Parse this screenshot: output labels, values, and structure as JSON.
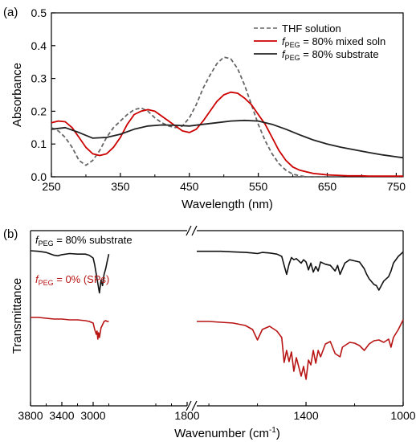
{
  "chart_data": [
    {
      "panel_label": "(a)",
      "type": "line",
      "xlabel": "Wavelength (nm)",
      "ylabel": "Absorbance",
      "xlim": [
        250,
        760
      ],
      "ylim": [
        0.0,
        0.5
      ],
      "x_ticks": [
        250,
        350,
        450,
        550,
        650,
        750
      ],
      "y_ticks": [
        0.0,
        0.1,
        0.2,
        0.3,
        0.4,
        0.5
      ],
      "grid": false,
      "legend_placement": "top-right",
      "series": [
        {
          "name": "THF solution",
          "legend_parts": {
            "italic": "",
            "sub": "",
            "rest": "THF solution"
          },
          "color": "#666666",
          "dash": true,
          "x": [
            250,
            260,
            270,
            280,
            290,
            300,
            310,
            320,
            330,
            340,
            350,
            360,
            370,
            380,
            390,
            400,
            410,
            420,
            430,
            440,
            450,
            460,
            470,
            480,
            490,
            500,
            510,
            520,
            530,
            540,
            550,
            560,
            570,
            580,
            590,
            600,
            610,
            620,
            630,
            640,
            650
          ],
          "y": [
            0.15,
            0.14,
            0.12,
            0.09,
            0.05,
            0.035,
            0.05,
            0.08,
            0.12,
            0.15,
            0.17,
            0.19,
            0.205,
            0.21,
            0.2,
            0.18,
            0.165,
            0.155,
            0.15,
            0.155,
            0.18,
            0.22,
            0.27,
            0.31,
            0.345,
            0.365,
            0.36,
            0.33,
            0.28,
            0.22,
            0.16,
            0.11,
            0.07,
            0.04,
            0.02,
            0.008,
            0.003,
            0.0,
            0.0,
            0.0,
            0.0
          ]
        },
        {
          "name": "fPEG = 80% mixed soln",
          "legend_parts": {
            "italic": "f",
            "sub": "PEG",
            "rest": " = 80% mixed soln"
          },
          "color": "#cc0000",
          "dash": false,
          "x": [
            250,
            260,
            270,
            280,
            290,
            300,
            310,
            320,
            330,
            340,
            350,
            360,
            370,
            380,
            390,
            400,
            410,
            420,
            430,
            440,
            450,
            460,
            470,
            480,
            490,
            500,
            510,
            520,
            530,
            540,
            550,
            560,
            570,
            580,
            590,
            600,
            610,
            620,
            630,
            640,
            650,
            660,
            670,
            680,
            690,
            700,
            710,
            720,
            730,
            740,
            750,
            760
          ],
          "y": [
            0.165,
            0.17,
            0.168,
            0.15,
            0.12,
            0.09,
            0.07,
            0.065,
            0.07,
            0.09,
            0.12,
            0.16,
            0.19,
            0.2,
            0.205,
            0.2,
            0.185,
            0.17,
            0.155,
            0.14,
            0.135,
            0.145,
            0.17,
            0.2,
            0.23,
            0.25,
            0.258,
            0.255,
            0.24,
            0.22,
            0.19,
            0.16,
            0.12,
            0.08,
            0.05,
            0.03,
            0.02,
            0.015,
            0.01,
            0.008,
            0.006,
            0.005,
            0.004,
            0.003,
            0.003,
            0.003,
            0.002,
            0.002,
            0.002,
            0.002,
            0.002,
            0.002
          ]
        },
        {
          "name": "fPEG = 80% substrate",
          "legend_parts": {
            "italic": "f",
            "sub": "PEG",
            "rest": " = 80% substrate"
          },
          "color": "#222222",
          "dash": false,
          "x": [
            250,
            270,
            290,
            310,
            330,
            350,
            370,
            390,
            410,
            430,
            450,
            470,
            490,
            510,
            530,
            550,
            570,
            590,
            610,
            630,
            650,
            670,
            690,
            710,
            730,
            750,
            760
          ],
          "y": [
            0.145,
            0.15,
            0.135,
            0.118,
            0.12,
            0.13,
            0.145,
            0.155,
            0.158,
            0.157,
            0.155,
            0.16,
            0.165,
            0.17,
            0.172,
            0.17,
            0.16,
            0.145,
            0.128,
            0.112,
            0.1,
            0.09,
            0.082,
            0.074,
            0.067,
            0.061,
            0.058
          ]
        }
      ]
    },
    {
      "panel_label": "(b)",
      "type": "line",
      "xlabel_main": "Wavenumber (cm",
      "xlabel_sup": "-1",
      "xlabel_close": ")",
      "ylabel": "Transmittance",
      "axis_break": true,
      "x_ticks_left": [
        "3800",
        "3400",
        "3000",
        "1800"
      ],
      "x_ticks_right": [
        "1400",
        "1000"
      ],
      "grid": false,
      "series": [
        {
          "name": "fPEG = 80% substrate",
          "label_parts": {
            "italic": "f",
            "sub": "PEG",
            "rest": " = 80% substrate"
          },
          "color": "#111111",
          "segments": [
            {
              "x": [
                3800,
                3700,
                3600,
                3500,
                3450,
                3400,
                3300,
                3200,
                3100,
                3050,
                3000,
                2980,
                2960,
                2940,
                2920,
                2900,
                2880,
                2860,
                2840,
                2820,
                2800
              ],
              "y": [
                80,
                79,
                77,
                72,
                71,
                73,
                75,
                74,
                74,
                72,
                67,
                55,
                38,
                22,
                5,
                28,
                18,
                38,
                48,
                62,
                74
              ]
            },
            {
              "x": [
                1850,
                1800,
                1750,
                1700,
                1650,
                1620,
                1600,
                1580,
                1550,
                1520,
                1500,
                1490,
                1480,
                1470,
                1460,
                1450,
                1440,
                1420,
                1410,
                1400,
                1390,
                1380,
                1370,
                1360,
                1350,
                1340,
                1320,
                1300,
                1280,
                1270,
                1260,
                1240,
                1220,
                1200,
                1180,
                1160,
                1150,
                1140,
                1120,
                1110,
                1100,
                1080,
                1060,
                1050,
                1040,
                1020,
                1000
              ],
              "y": [
                79,
                79,
                79,
                78,
                77,
                76,
                75,
                77,
                76,
                74,
                70,
                54,
                38,
                56,
                68,
                64,
                66,
                58,
                64,
                60,
                46,
                58,
                42,
                52,
                44,
                60,
                56,
                54,
                44,
                54,
                38,
                58,
                64,
                62,
                60,
                48,
                38,
                30,
                20,
                18,
                10,
                26,
                34,
                44,
                58,
                70,
                78
              ]
            }
          ]
        },
        {
          "name": "fPEG = 0% (SPs)",
          "label_parts": {
            "italic": "f",
            "sub": "PEG",
            "rest": " = 0% (SPs)"
          },
          "color": "#b81414",
          "segments": [
            {
              "x": [
                3800,
                3700,
                3600,
                3500,
                3400,
                3300,
                3200,
                3100,
                3050,
                3000,
                2980,
                2960,
                2950,
                2940,
                2930,
                2920,
                2900,
                2880,
                2860,
                2840,
                2820,
                2800
              ],
              "y": [
                55,
                55,
                54,
                53,
                53,
                52,
                52,
                51,
                50,
                48,
                40,
                34,
                38,
                28,
                36,
                30,
                42,
                46,
                50,
                51,
                50,
                50
              ]
            },
            {
              "x": [
                1850,
                1800,
                1750,
                1700,
                1650,
                1620,
                1600,
                1580,
                1550,
                1520,
                1500,
                1490,
                1480,
                1470,
                1460,
                1450,
                1440,
                1420,
                1410,
                1400,
                1390,
                1380,
                1370,
                1360,
                1350,
                1340,
                1320,
                1300,
                1280,
                1260,
                1250,
                1240,
                1220,
                1200,
                1180,
                1160,
                1140,
                1120,
                1100,
                1080,
                1060,
                1050,
                1040,
                1020,
                1000
              ],
              "y": [
                50,
                50,
                49,
                48,
                45,
                40,
                27,
                40,
                44,
                38,
                30,
                -1,
                14,
                0,
                12,
                -12,
                5,
                -18,
                -6,
                -22,
                2,
                -4,
                14,
                -2,
                14,
                6,
                22,
                25,
                10,
                6,
                18,
                20,
                24,
                23,
                20,
                14,
                22,
                26,
                27,
                24,
                28,
                18,
                30,
                40,
                52
              ]
            }
          ]
        }
      ]
    }
  ]
}
